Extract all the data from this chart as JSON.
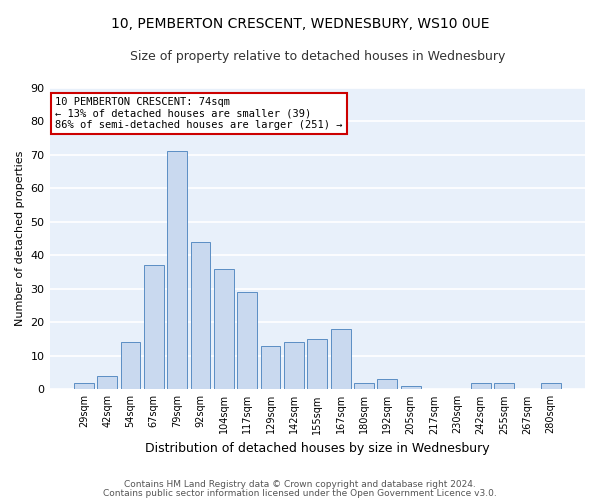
{
  "title": "10, PEMBERTON CRESCENT, WEDNESBURY, WS10 0UE",
  "subtitle": "Size of property relative to detached houses in Wednesbury",
  "xlabel": "Distribution of detached houses by size in Wednesbury",
  "ylabel": "Number of detached properties",
  "categories": [
    "29sqm",
    "42sqm",
    "54sqm",
    "67sqm",
    "79sqm",
    "92sqm",
    "104sqm",
    "117sqm",
    "129sqm",
    "142sqm",
    "155sqm",
    "167sqm",
    "180sqm",
    "192sqm",
    "205sqm",
    "217sqm",
    "230sqm",
    "242sqm",
    "255sqm",
    "267sqm",
    "280sqm"
  ],
  "values": [
    2,
    4,
    14,
    37,
    71,
    44,
    36,
    29,
    13,
    14,
    15,
    18,
    2,
    3,
    1,
    0,
    0,
    2,
    2,
    0,
    2
  ],
  "bar_color": "#c9d9ef",
  "bar_edge_color": "#5b8ec4",
  "figure_bg": "#ffffff",
  "plot_bg": "#e8f0fa",
  "grid_color": "#ffffff",
  "annotation_text": "10 PEMBERTON CRESCENT: 74sqm\n← 13% of detached houses are smaller (39)\n86% of semi-detached houses are larger (251) →",
  "annotation_box_color": "#ffffff",
  "annotation_box_edge_color": "#cc0000",
  "ylim": [
    0,
    90
  ],
  "yticks": [
    0,
    10,
    20,
    30,
    40,
    50,
    60,
    70,
    80,
    90
  ],
  "footer_line1": "Contains HM Land Registry data © Crown copyright and database right 2024.",
  "footer_line2": "Contains public sector information licensed under the Open Government Licence v3.0."
}
